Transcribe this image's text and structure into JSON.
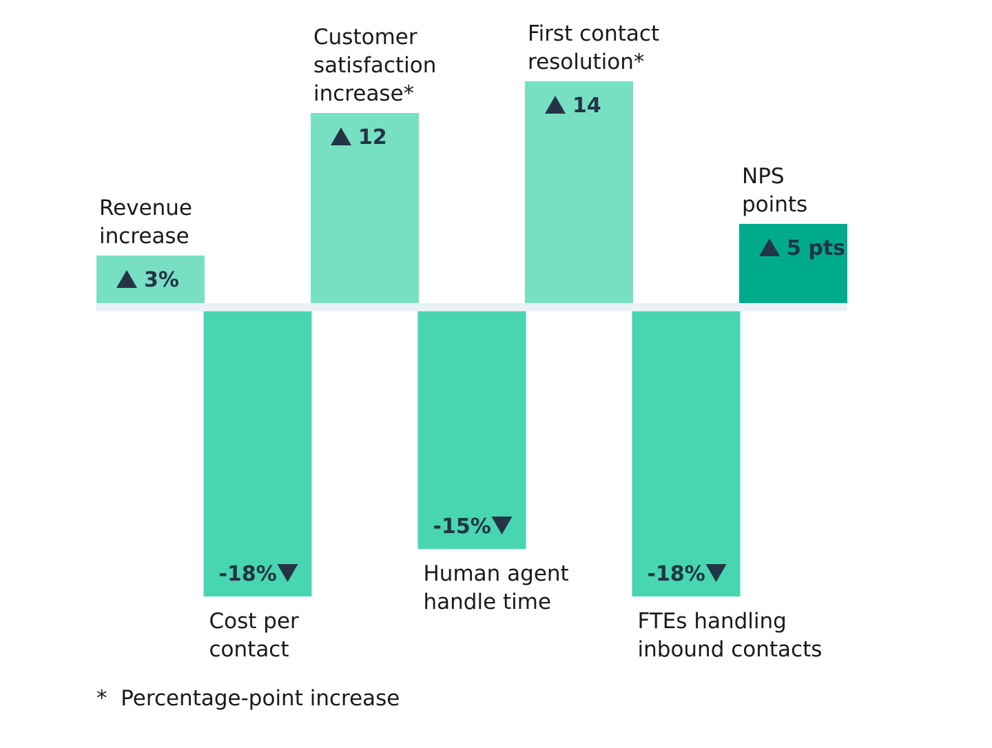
{
  "chart_data": {
    "type": "bar",
    "categories": [
      "Revenue increase",
      "Cost per contact",
      "Customer satisfaction increase*",
      "Human agent handle time",
      "First contact resolution*",
      "FTEs handling inbound contacts",
      "NPS points"
    ],
    "category_lines": [
      [
        "Revenue",
        "increase"
      ],
      [
        "Cost per",
        "contact"
      ],
      [
        "Customer",
        "satisfaction",
        "increase*"
      ],
      [
        "Human agent",
        "handle time"
      ],
      [
        "First contact",
        "resolution*"
      ],
      [
        "FTEs handling",
        "inbound contacts"
      ],
      [
        "NPS",
        "points"
      ]
    ],
    "values": [
      3,
      -18,
      12,
      -15,
      14,
      -18,
      5
    ],
    "value_labels": [
      "3%",
      "-18%",
      "12",
      "-15%",
      "14",
      "-18%",
      "5 pts"
    ],
    "xlabel": "",
    "ylabel": "",
    "grid": false,
    "colors": {
      "positive": "#77e0c3",
      "negative": "#47d6af",
      "highlight": "#00ab8c",
      "baseline": "#eaf1f7",
      "text": "#233446"
    },
    "highlight_index": 6
  },
  "footnote": {
    "marker": "*",
    "text": "Percentage-point increase"
  }
}
